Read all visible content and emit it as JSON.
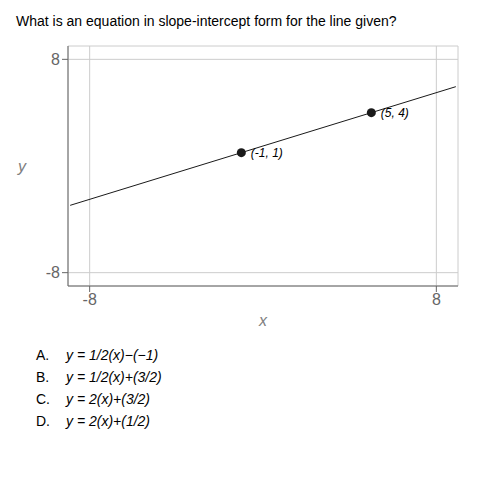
{
  "chart_data": {
    "type": "line",
    "title": "What is an equation in slope-intercept form for the line given?",
    "x_label": "x",
    "y_label": "y",
    "xlim": [
      -9,
      9
    ],
    "ylim": [
      -9,
      9
    ],
    "xticks": [
      -8,
      8
    ],
    "yticks": [
      -8,
      8
    ],
    "grid": true,
    "series": [
      {
        "type": "line",
        "color": "#1a1a1a",
        "x": [
          -8.9,
          8.9
        ],
        "values": [
          -2.95,
          5.95
        ]
      },
      {
        "type": "scatter",
        "color": "#1a1a1a",
        "x": [
          5,
          -1
        ],
        "values": [
          4,
          1
        ],
        "value_labels": [
          "(5, 4)",
          "(-1, 1)"
        ]
      }
    ],
    "annotations": [
      [
        "A.",
        "y = 1/2(x)−(−1)"
      ],
      [
        "B.",
        "y = 1/2(x)+(3/2)"
      ],
      [
        "C.",
        "y = 2(x)+(3/2)"
      ],
      [
        "D.",
        "y = 2(x)+(1/2)"
      ]
    ]
  }
}
